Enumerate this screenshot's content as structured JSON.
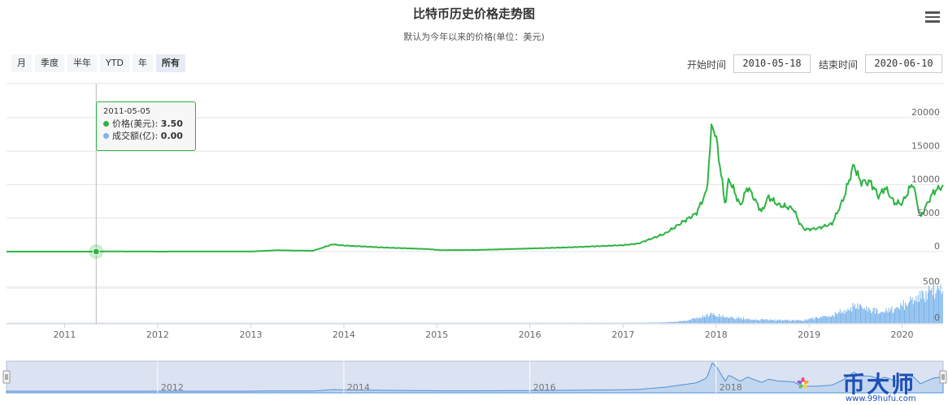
{
  "chart_title": "比特币历史价格走势图",
  "chart_subtitle": "默认为今年以来的价格(单位：美元)",
  "range_buttons": [
    "月",
    "季度",
    "半年",
    "YTD",
    "年",
    "所有"
  ],
  "active_range": "所有",
  "start_label": "开始时间",
  "start_value": "2010-05-18",
  "end_label": "结束时间",
  "end_value": "2020-06-10",
  "tooltip": {
    "date": "2011-05-05",
    "price_label": "价格(美元)",
    "price_value": "3.50",
    "volume_label": "成交额(亿)",
    "volume_value": "0.00"
  },
  "watermark": {
    "text": "币大师",
    "url": "www.99hufu.com"
  },
  "colors": {
    "price_line": "#2fb344",
    "volume_bar": "#7cb5ec",
    "navigator_fill": "#ccd6eb",
    "brand": "#1d4fb5"
  },
  "chart_data": {
    "type": "line",
    "title": "比特币历史价格走势图",
    "subtitle": "默认为今年以来的价格(单位：美元)",
    "x_ticks": [
      "2011",
      "2012",
      "2013",
      "2014",
      "2015",
      "2016",
      "2017",
      "2018",
      "2019",
      "2020"
    ],
    "navigator_ticks": [
      "2012",
      "2014",
      "2016",
      "2018"
    ],
    "price_axis": {
      "ticks": [
        0,
        5000,
        10000,
        15000,
        20000
      ],
      "ylim": [
        0,
        20000
      ]
    },
    "volume_axis": {
      "ticks": [
        0,
        500
      ],
      "ylim": [
        0,
        650
      ]
    },
    "xlim": [
      "2010-05-18",
      "2020-06-10"
    ],
    "series": [
      {
        "name": "价格(美元)",
        "x": [
          "2010-05-18",
          "2011-05-05",
          "2011-06-10",
          "2012-01-01",
          "2012-08-15",
          "2013-01-01",
          "2013-04-10",
          "2013-09-01",
          "2013-11-20",
          "2013-12-05",
          "2014-01-05",
          "2014-06-01",
          "2014-12-01",
          "2015-01-15",
          "2015-06-01",
          "2015-12-01",
          "2016-06-15",
          "2016-12-31",
          "2017-03-01",
          "2017-05-25",
          "2017-06-15",
          "2017-08-30",
          "2017-10-15",
          "2017-11-25",
          "2017-12-17",
          "2018-01-05",
          "2018-02-06",
          "2018-02-20",
          "2018-04-06",
          "2018-05-05",
          "2018-06-29",
          "2018-07-25",
          "2018-09-01",
          "2018-11-01",
          "2018-11-25",
          "2018-12-15",
          "2019-02-01",
          "2019-04-01",
          "2019-05-15",
          "2019-06-26",
          "2019-07-20",
          "2019-09-01",
          "2019-10-01",
          "2019-10-26",
          "2019-12-01",
          "2020-01-01",
          "2020-02-12",
          "2020-03-13",
          "2020-04-01",
          "2020-05-05",
          "2020-06-10"
        ],
        "values": [
          0.1,
          3.5,
          25,
          5,
          12,
          13,
          200,
          120,
          1100,
          1000,
          900,
          620,
          370,
          220,
          240,
          430,
          650,
          960,
          1200,
          2400,
          2700,
          4600,
          5700,
          9000,
          19500,
          16000,
          6900,
          11000,
          6800,
          9700,
          5900,
          8200,
          7000,
          6400,
          4200,
          3300,
          3450,
          4150,
          7800,
          13000,
          10500,
          10300,
          8200,
          9600,
          7300,
          7200,
          10300,
          5000,
          6600,
          9000,
          9800
        ]
      },
      {
        "name": "成交额(亿)",
        "x": [
          "2010-05-18",
          "2017-01-01",
          "2017-06-01",
          "2017-09-01",
          "2017-12-15",
          "2018-02-01",
          "2018-06-01",
          "2018-12-01",
          "2019-04-01",
          "2019-06-26",
          "2019-09-01",
          "2019-12-01",
          "2020-03-13",
          "2020-05-10",
          "2020-06-10"
        ],
        "values": [
          0,
          2,
          10,
          35,
          160,
          110,
          60,
          45,
          140,
          300,
          220,
          240,
          480,
          620,
          500
        ]
      }
    ]
  }
}
